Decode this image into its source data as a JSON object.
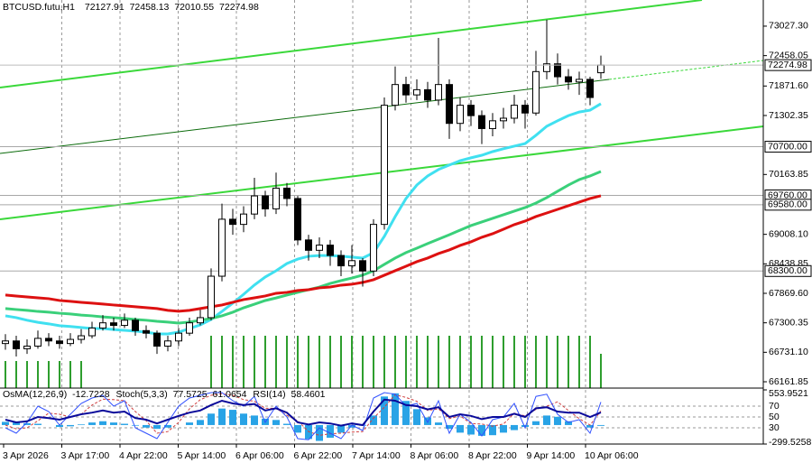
{
  "chart_data": [
    {
      "type": "candlestick",
      "title": "BTCUSD.futu,H1",
      "open": [
        66900,
        66950,
        66800,
        66850,
        67000,
        66950,
        66900,
        66980,
        67050,
        67200,
        67300,
        67250,
        67350,
        67150,
        67100,
        66850,
        66950,
        67100,
        67300,
        67400,
        68200,
        69300,
        69200,
        69400,
        69750,
        69500,
        69900,
        69700,
        68900,
        68700,
        68800,
        68600,
        68400,
        68500,
        68300,
        69200,
        71500,
        71900,
        71700,
        71800,
        71600,
        71900,
        71150,
        71500,
        71300,
        71050,
        71200,
        71250,
        71500,
        71350,
        72150,
        72300,
        72050,
        71950,
        72000,
        72127.91
      ],
      "high": [
        67080,
        67050,
        66980,
        67150,
        67100,
        67050,
        67100,
        67180,
        67320,
        67450,
        67400,
        67480,
        67400,
        67250,
        67150,
        67050,
        67200,
        67400,
        67550,
        68350,
        69600,
        69500,
        69550,
        70100,
        69850,
        70200,
        70000,
        69750,
        69000,
        68950,
        68900,
        68700,
        68800,
        68550,
        69300,
        71650,
        72250,
        72050,
        72000,
        71950,
        72800,
        72000,
        71650,
        71600,
        71400,
        71350,
        71450,
        71700,
        71600,
        72550,
        73150,
        72500,
        72200,
        72150,
        72050,
        72458.13
      ],
      "low": [
        66780,
        66650,
        66700,
        66800,
        66850,
        66800,
        66850,
        66900,
        67000,
        67150,
        67150,
        67200,
        67050,
        67000,
        66700,
        66750,
        66850,
        67050,
        67250,
        67350,
        68100,
        69000,
        69050,
        69300,
        69350,
        69400,
        69550,
        68800,
        68500,
        68550,
        68400,
        68200,
        68250,
        68000,
        68200,
        69100,
        71400,
        71550,
        71600,
        71450,
        71500,
        70850,
        71000,
        71100,
        70750,
        70900,
        71050,
        71150,
        71050,
        71300,
        72000,
        71900,
        71800,
        71700,
        71500,
        72010.55
      ],
      "close": [
        66950,
        66800,
        66850,
        67000,
        66950,
        66900,
        66980,
        67050,
        67200,
        67300,
        67250,
        67350,
        67150,
        67100,
        66850,
        66950,
        67100,
        67300,
        67400,
        68200,
        69300,
        69200,
        69400,
        69750,
        69500,
        69900,
        69700,
        68900,
        68700,
        68800,
        68600,
        68400,
        68500,
        68300,
        69200,
        71500,
        71900,
        71700,
        71800,
        71600,
        71900,
        71150,
        71500,
        71300,
        71050,
        71200,
        71250,
        71500,
        71350,
        72150,
        72300,
        72050,
        71950,
        72000,
        71650,
        72274.98
      ],
      "series": [
        {
          "color": "#40e0f0",
          "values": [
            67435,
            67400,
            67350,
            67310,
            67280,
            67245,
            67230,
            67210,
            67190,
            67190,
            67170,
            67155,
            67140,
            67120,
            67085,
            67085,
            67120,
            67190,
            67260,
            67365,
            67520,
            67680,
            67850,
            68030,
            68185,
            68305,
            68445,
            68530,
            68585,
            68600,
            68600,
            68585,
            68568,
            68550,
            68655,
            68970,
            69350,
            69700,
            69960,
            70135,
            70260,
            70345,
            70430,
            70485,
            70535,
            70605,
            70660,
            70710,
            70760,
            70920,
            71095,
            71200,
            71300,
            71370,
            71405,
            71529
          ]
        },
        {
          "color": "#3ad07a",
          "values": [
            67575,
            67557,
            67540,
            67520,
            67505,
            67485,
            67470,
            67450,
            67435,
            67415,
            67400,
            67383,
            67365,
            67350,
            67330,
            67315,
            67295,
            67315,
            67350,
            67383,
            67435,
            67505,
            67590,
            67660,
            67730,
            67780,
            67835,
            67888,
            67940,
            67990,
            68060,
            68115,
            68165,
            68220,
            68305,
            68428,
            68550,
            68655,
            68740,
            68830,
            68915,
            69000,
            69090,
            69177,
            69247,
            69316,
            69386,
            69456,
            69525,
            69612,
            69717,
            69840,
            69960,
            70065,
            70135,
            70222
          ]
        },
        {
          "color": "#dd1111",
          "values": [
            67836,
            67818,
            67800,
            67783,
            67766,
            67731,
            67714,
            67696,
            67679,
            67662,
            67644,
            67627,
            67610,
            67592,
            67575,
            67540,
            67523,
            67540,
            67575,
            67610,
            67644,
            67696,
            67749,
            67783,
            67818,
            67870,
            67888,
            67923,
            67940,
            67975,
            67992,
            68027,
            68045,
            68080,
            68132,
            68219,
            68306,
            68393,
            68480,
            68550,
            68637,
            68707,
            68794,
            68864,
            68951,
            69020,
            69107,
            69195,
            69264,
            69351,
            69420,
            69490,
            69560,
            69630,
            69700,
            69752
          ]
        }
      ],
      "volume": {
        "color": "#2e9e2e",
        "values": [
          30,
          30,
          30,
          30,
          30,
          30,
          30,
          30,
          0,
          0,
          0,
          0,
          0,
          0,
          0,
          0,
          0,
          0,
          0,
          58,
          58,
          58,
          58,
          58,
          58,
          58,
          58,
          58,
          58,
          58,
          58,
          58,
          58,
          58,
          58,
          58,
          58,
          58,
          58,
          58,
          58,
          58,
          58,
          58,
          58,
          58,
          58,
          58,
          58,
          58,
          58,
          58,
          58,
          58,
          58,
          38
        ]
      },
      "levels": [
        {
          "value": 70700,
          "label": "70700.00"
        },
        {
          "value": 69760,
          "label": "69760.00"
        },
        {
          "value": 69580,
          "label": "69580.00"
        },
        {
          "value": 68300,
          "label": "68300.00"
        }
      ],
      "ylim": [
        66040,
        73532
      ],
      "yticks": [
        {
          "value": 73027.3,
          "label": "73027.30"
        },
        {
          "value": 72458.05,
          "label": "72458.05"
        },
        {
          "value": 71871.6,
          "label": "71871.60"
        },
        {
          "value": 71302.35,
          "label": "71302.35"
        },
        {
          "value": 70163.85,
          "label": "70163.85"
        },
        {
          "value": 69008.1,
          "label": "69008.10"
        },
        {
          "value": 68438.85,
          "label": "68438.85"
        },
        {
          "value": 67869.6,
          "label": "67869.60"
        },
        {
          "value": 67300.35,
          "label": "67300.35"
        },
        {
          "value": 66731.1,
          "label": "66731.10"
        },
        {
          "value": 66161.85,
          "label": "66161.85"
        }
      ],
      "x_labels": [
        "3 Apr 2026",
        "3 Apr 17:00",
        "4 Apr 22:00",
        "5 Apr 14:00",
        "6 Apr 06:00",
        "6 Apr 22:00",
        "7 Apr 14:00",
        "8 Apr 06:00",
        "8 Apr 22:00",
        "9 Apr 14:00",
        "10 Apr 06:00"
      ],
      "grid": true
    },
    {
      "type": "indicator",
      "osma": {
        "title": "OsMA(12,26,9)",
        "color": "#29a3e6",
        "values": [
          50,
          40,
          30,
          20,
          0,
          -30,
          -20,
          10,
          40,
          60,
          40,
          20,
          -10,
          -40,
          -60,
          -40,
          0,
          40,
          80,
          180,
          260,
          240,
          180,
          150,
          100,
          80,
          20,
          -120,
          -220,
          -250,
          -200,
          -120,
          -40,
          -10,
          150,
          450,
          500,
          380,
          250,
          120,
          40,
          -60,
          -120,
          -150,
          -170,
          -160,
          -120,
          -80,
          -30,
          60,
          150,
          130,
          60,
          0,
          -40,
          -12.7228
        ]
      },
      "stoch": {
        "title": "Stoch(5,3,3)",
        "color": "#3050ff",
        "signal_color": "#d04040",
        "values": [
          30,
          20,
          40,
          70,
          60,
          35,
          55,
          75,
          85,
          90,
          70,
          80,
          30,
          20,
          10,
          40,
          70,
          85,
          90,
          95,
          95,
          80,
          70,
          88,
          40,
          70,
          50,
          10,
          8,
          30,
          20,
          10,
          35,
          25,
          85,
          95,
          92,
          70,
          75,
          40,
          80,
          20,
          55,
          40,
          15,
          45,
          50,
          75,
          30,
          88,
          92,
          55,
          40,
          45,
          20,
          77.5725
        ],
        "signal": [
          35,
          28,
          30,
          43,
          57,
          55,
          50,
          55,
          72,
          83,
          82,
          80,
          60,
          43,
          20,
          23,
          40,
          65,
          82,
          90,
          93,
          90,
          82,
          79,
          66,
          66,
          53,
          43,
          23,
          16,
          19,
          20,
          22,
          23,
          48,
          68,
          91,
          86,
          79,
          62,
          65,
          47,
          52,
          38,
          37,
          33,
          37,
          57,
          52,
          64,
          70,
          78,
          62,
          47,
          35,
          61.0654
        ]
      },
      "rsi": {
        "title": "RSI(14)",
        "color": "#0a0a9a",
        "values": [
          45,
          40,
          42,
          50,
          48,
          45,
          50,
          55,
          58,
          62,
          58,
          60,
          48,
          45,
          38,
          45,
          52,
          58,
          62,
          72,
          80,
          75,
          72,
          74,
          62,
          66,
          58,
          40,
          36,
          40,
          38,
          34,
          38,
          35,
          60,
          82,
          80,
          72,
          70,
          64,
          68,
          50,
          55,
          52,
          46,
          50,
          50,
          56,
          50,
          66,
          68,
          60,
          58,
          58,
          50,
          58.4601
        ]
      },
      "ylim": [
        -299.5258,
        553.9521
      ],
      "yticks": [
        553.9521,
        -299.5258
      ],
      "y2lim": [
        0,
        100
      ],
      "y2ticks": [
        70,
        50,
        30
      ]
    }
  ]
}
